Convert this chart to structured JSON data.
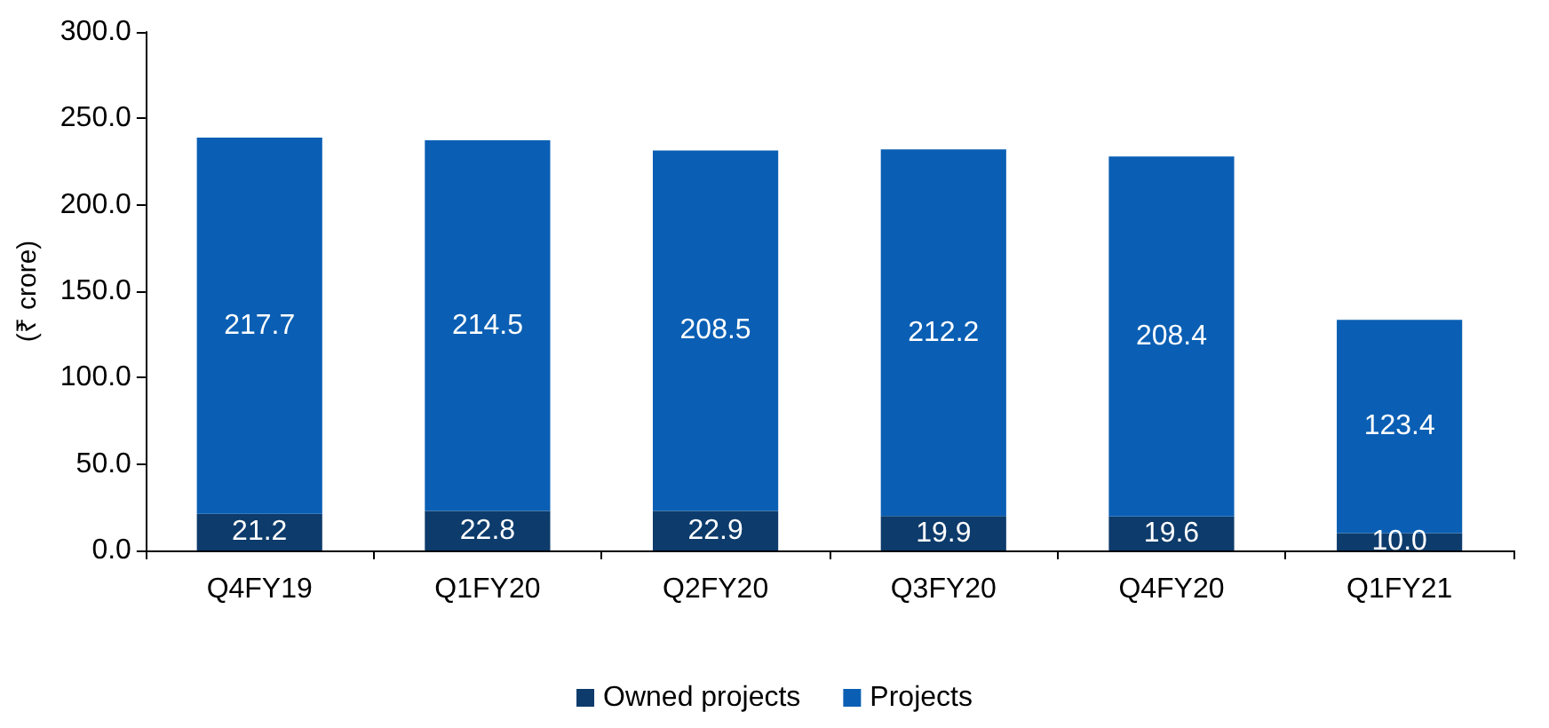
{
  "chart_data": {
    "type": "bar",
    "stacked": true,
    "ylabel": "(₹ crore)",
    "categories": [
      "Q4FY19",
      "Q1FY20",
      "Q2FY20",
      "Q3FY20",
      "Q4FY20",
      "Q1FY21"
    ],
    "series": [
      {
        "name": "Owned projects",
        "color": "#0d3b6b",
        "values": [
          21.2,
          22.8,
          22.9,
          19.9,
          19.6,
          10.0
        ],
        "value_labels": [
          "21.2",
          "22.8",
          "22.9",
          "19.9",
          "19.6",
          "10.0"
        ]
      },
      {
        "name": "Projects",
        "color": "#0a5fb4",
        "values": [
          217.7,
          214.5,
          208.5,
          212.2,
          208.4,
          123.4
        ],
        "value_labels": [
          "217.7",
          "214.5",
          "208.5",
          "212.2",
          "208.4",
          "123.4"
        ]
      }
    ],
    "ylim": [
      0,
      300
    ],
    "yticks": [
      {
        "value": 0,
        "label": "0.0"
      },
      {
        "value": 50,
        "label": "50.0"
      },
      {
        "value": 100,
        "label": "100.0"
      },
      {
        "value": 150,
        "label": "150.0"
      },
      {
        "value": 200,
        "label": "200.0"
      },
      {
        "value": 250,
        "label": "250.0"
      },
      {
        "value": 300,
        "label": "300.0"
      }
    ],
    "grid": false,
    "legend": "bottom"
  }
}
